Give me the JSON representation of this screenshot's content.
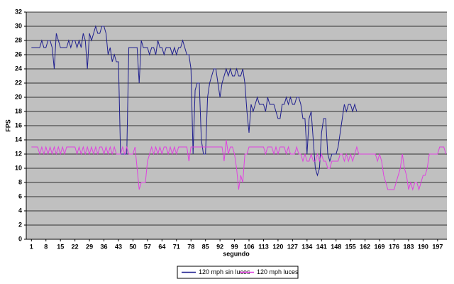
{
  "chart_data": {
    "type": "line",
    "x_label": "segundo",
    "y_label": "FPS",
    "x": [
      1,
      2,
      3,
      4,
      5,
      6,
      7,
      8,
      9,
      10,
      11,
      12,
      13,
      14,
      15,
      16,
      17,
      18,
      19,
      20,
      21,
      22,
      23,
      24,
      25,
      26,
      27,
      28,
      29,
      30,
      31,
      32,
      33,
      34,
      35,
      36,
      37,
      38,
      39,
      40,
      41,
      42,
      43,
      44,
      45,
      46,
      47,
      48,
      49,
      50,
      51,
      52,
      53,
      54,
      55,
      56,
      57,
      58,
      59,
      60,
      61,
      62,
      63,
      64,
      65,
      66,
      67,
      68,
      69,
      70,
      71,
      72,
      73,
      74,
      75,
      76,
      77,
      78,
      79,
      80,
      81,
      82,
      83,
      84,
      85,
      86,
      87,
      88,
      89,
      90,
      91,
      92,
      93,
      94,
      95,
      96,
      97,
      98,
      99,
      100,
      101,
      102,
      103,
      104,
      105,
      106,
      107,
      108,
      109,
      110,
      111,
      112,
      113,
      114,
      115,
      116,
      117,
      118,
      119,
      120,
      121,
      122,
      123,
      124,
      125,
      126,
      127,
      128,
      129,
      130,
      131,
      132,
      133,
      134,
      135,
      136,
      137,
      138,
      139,
      140,
      141,
      142,
      143,
      144,
      145,
      146,
      147,
      148,
      149,
      150,
      151,
      152,
      153,
      154,
      155,
      156,
      157,
      158,
      159,
      160,
      161,
      162,
      163,
      164,
      165,
      166,
      167,
      168,
      169,
      170,
      171,
      172,
      173,
      174,
      175,
      176,
      177,
      178,
      179,
      180,
      181,
      182,
      183,
      184,
      185,
      186,
      187,
      188,
      189,
      190,
      191,
      192,
      193,
      194,
      195,
      196,
      197,
      198,
      199,
      200,
      201
    ],
    "xlim": [
      -1.5,
      201.5
    ],
    "xticks": [
      1,
      8,
      15,
      22,
      29,
      36,
      43,
      50,
      57,
      64,
      71,
      78,
      85,
      92,
      99,
      106,
      113,
      120,
      127,
      134,
      141,
      148,
      155,
      162,
      169,
      176,
      183,
      190,
      197
    ],
    "ylim": [
      0,
      32
    ],
    "yticks": [
      0,
      2,
      4,
      6,
      8,
      10,
      12,
      14,
      16,
      18,
      20,
      22,
      24,
      26,
      28,
      30,
      32
    ],
    "grid": true,
    "legend": "bottom",
    "series": [
      {
        "name": "120 mph sin luces",
        "color": "#1f1f8f",
        "values": [
          27,
          27,
          27,
          27,
          27,
          28,
          27,
          27,
          28,
          28,
          27,
          24,
          29,
          28,
          27,
          27,
          27,
          27,
          28,
          27,
          28,
          28,
          27,
          28,
          27,
          29,
          28,
          24,
          29,
          28,
          29,
          30,
          29,
          29,
          30,
          30,
          29,
          26,
          27,
          25,
          26,
          25,
          25,
          12,
          12,
          12,
          12,
          27,
          27,
          27,
          27,
          27,
          22,
          28,
          27,
          27,
          27,
          26,
          27,
          27,
          26,
          28,
          27,
          27,
          26,
          27,
          27,
          27,
          26,
          27,
          26,
          27,
          27,
          28,
          27,
          26,
          26,
          24,
          12,
          21,
          22,
          22,
          14,
          12,
          12,
          20,
          22,
          23,
          24,
          24,
          22,
          20,
          22,
          23,
          24,
          23,
          24,
          23,
          23,
          24,
          23,
          23,
          24,
          22,
          18,
          15,
          19,
          18,
          19,
          20,
          19,
          19,
          19,
          18,
          20,
          19,
          19,
          19,
          18,
          17,
          17,
          19,
          19,
          20,
          19,
          20,
          19,
          19,
          20,
          20,
          19,
          17,
          17,
          12,
          17,
          18,
          14,
          10,
          9,
          10,
          15,
          17,
          17,
          12,
          11,
          12,
          12,
          12,
          13,
          15,
          17,
          19,
          18,
          19,
          19,
          18,
          19,
          18,
          null,
          null,
          null,
          null,
          null,
          null,
          null,
          null,
          null,
          null,
          null,
          null,
          null,
          null,
          null,
          null,
          null,
          null,
          null,
          null,
          null,
          null,
          null,
          null,
          null,
          null,
          null,
          null,
          null,
          null,
          null,
          null,
          null,
          null,
          null,
          null,
          null,
          null,
          null,
          null,
          null,
          null,
          null
        ]
      },
      {
        "name": "120 mph luces",
        "color": "#e040e0",
        "values": [
          13,
          13,
          13,
          13,
          12,
          13,
          12,
          13,
          12,
          13,
          12,
          13,
          12,
          13,
          12,
          13,
          12,
          13,
          13,
          13,
          13,
          13,
          12,
          13,
          12,
          13,
          12,
          13,
          12,
          13,
          12,
          13,
          12,
          13,
          13,
          12,
          13,
          12,
          13,
          12,
          13,
          12,
          12,
          12,
          13,
          12,
          13,
          12,
          12,
          12,
          13,
          10,
          7,
          8,
          8,
          8,
          11,
          12,
          13,
          12,
          13,
          12,
          13,
          12,
          13,
          13,
          12,
          13,
          12,
          13,
          12,
          13,
          13,
          13,
          13,
          13,
          11,
          13,
          13,
          13,
          13,
          13,
          13,
          13,
          13,
          13,
          13,
          13,
          13,
          13,
          13,
          13,
          13,
          11,
          14,
          12,
          13,
          13,
          12,
          10,
          7,
          9,
          8,
          12,
          12,
          13,
          13,
          13,
          13,
          13,
          13,
          13,
          13,
          12,
          13,
          13,
          13,
          12,
          13,
          12,
          13,
          13,
          13,
          12,
          13,
          12,
          12,
          12,
          13,
          12,
          12,
          11,
          12,
          11,
          11,
          12,
          11,
          11,
          12,
          11,
          12,
          11,
          11,
          10,
          10,
          11,
          11,
          11,
          11,
          12,
          12,
          11,
          12,
          11,
          12,
          11,
          12,
          13,
          12,
          12,
          12,
          12,
          12,
          12,
          12,
          12,
          12,
          11,
          12,
          11,
          9,
          8,
          7,
          7,
          7,
          7,
          8,
          9,
          10,
          12,
          10,
          9,
          7,
          8,
          7,
          8,
          8,
          7,
          8,
          9,
          9,
          10,
          12,
          12,
          12,
          12,
          12,
          13,
          13,
          13,
          12
        ]
      }
    ]
  }
}
